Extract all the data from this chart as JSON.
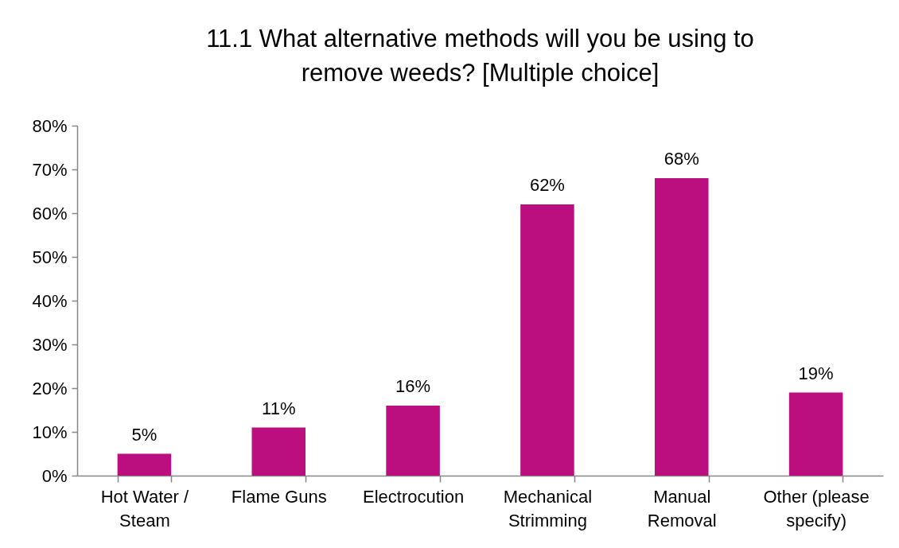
{
  "chart_data": {
    "type": "bar",
    "title": "11.1  What alternative methods will you be using to remove weeds? [Multiple choice]",
    "categories": [
      "Hot Water / Steam",
      "Flame Guns",
      "Electrocution",
      "Mechanical Strimming",
      "Manual Removal",
      "Other (please specify)"
    ],
    "values": [
      5,
      11,
      16,
      62,
      68,
      19
    ],
    "value_labels": [
      "5%",
      "11%",
      "16%",
      "62%",
      "68%",
      "19%"
    ],
    "color": "#bb0f7f",
    "ylim": [
      0,
      80
    ],
    "yticks": [
      {
        "value": 0,
        "label": "0%"
      },
      {
        "value": 10,
        "label": "10%"
      },
      {
        "value": 20,
        "label": "20%"
      },
      {
        "value": 30,
        "label": "30%"
      },
      {
        "value": 40,
        "label": "40%"
      },
      {
        "value": 50,
        "label": "50%"
      },
      {
        "value": 60,
        "label": "60%"
      },
      {
        "value": 70,
        "label": "70%"
      },
      {
        "value": 80,
        "label": "80%"
      }
    ]
  }
}
